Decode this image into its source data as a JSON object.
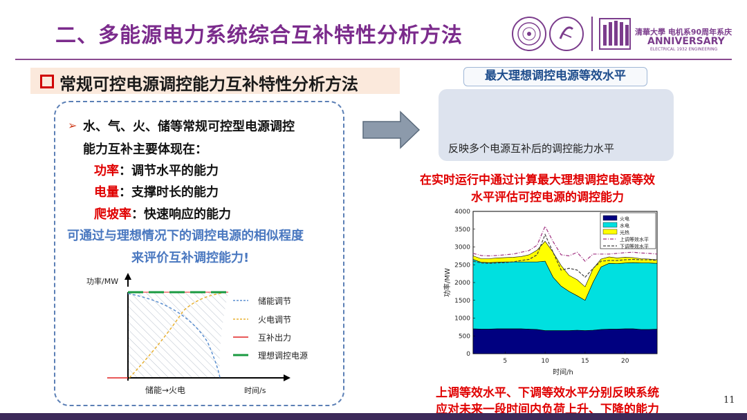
{
  "header": {
    "title": "二、多能源电力系统综合互补特性分析方法",
    "logo_caption_1": "清華大學 电机系90周年系庆",
    "logo_caption_2": "ANNIVERSARY",
    "logo_caption_3": "ELECTRICAL 1932 ENGINEERING"
  },
  "section": {
    "subtitle": "常规可控电源调控能力互补特性分析方法"
  },
  "left_panel": {
    "bullet_line1": "水、气、火、储等常规可控型电源调控",
    "bullet_line2": "能力互补主要体现在：",
    "items": [
      {
        "key": "功率",
        "desc": "：调节水平的能力"
      },
      {
        "key": "电量",
        "desc": "：支撑时长的能力"
      },
      {
        "key": "爬坡率",
        "desc": "：快速响应的能力"
      }
    ],
    "note_line1": "可通过与理想情况下的调控电源的相似程度",
    "note_line2": "来评价互补调控能力!"
  },
  "small_chart": {
    "ylabel": "功率/MW",
    "xlabel": "时间/s",
    "x_annotation": "储能→火电",
    "legend": [
      "储能调节",
      "火电调节",
      "互补出力",
      "理想调控电源"
    ],
    "colors": {
      "storage": "#5b8fd0",
      "thermal": "#e8b030",
      "complement": "#e02020",
      "ideal": "#1a9a40"
    }
  },
  "right_panel": {
    "label": "最大理想调控电源等效水平",
    "box_text": "反映多个电源互补后的调控能力水平",
    "red_note_line1": "在实时运行中通过计算最大理想调控电源等效",
    "red_note_line2": "水平评估可控电源的调控能力",
    "bottom_note_line1": "上调等效水平、下调等效水平分别反映系统",
    "bottom_note_line2": "应对未来一段时间内负荷上升、下降的能力"
  },
  "page_number": "11",
  "chart_data": {
    "type": "area",
    "xlabel": "时间/h",
    "ylabel": "功率/MW",
    "ylim": [
      0,
      4000
    ],
    "xlim": [
      1,
      24
    ],
    "x_ticks": [
      5,
      10,
      15,
      20
    ],
    "y_ticks": [
      0,
      500,
      1000,
      1500,
      2000,
      2500,
      3000,
      3500,
      4000
    ],
    "legend_placement": "top-right",
    "x": [
      1,
      2,
      3,
      4,
      5,
      6,
      7,
      8,
      9,
      10,
      11,
      12,
      13,
      14,
      15,
      16,
      17,
      18,
      19,
      20,
      21,
      22,
      23,
      24
    ],
    "series": [
      {
        "name": "火电",
        "color": "#000080",
        "values": [
          700,
          690,
          690,
          700,
          700,
          700,
          700,
          690,
          680,
          650,
          650,
          650,
          650,
          660,
          650,
          660,
          680,
          690,
          690,
          700,
          700,
          680,
          680,
          690
        ]
      },
      {
        "name": "水电",
        "color": "#00e0e0",
        "values": [
          1950,
          1880,
          1870,
          1870,
          1880,
          1880,
          1880,
          1890,
          1900,
          1950,
          1500,
          1250,
          1100,
          970,
          850,
          1350,
          1760,
          1850,
          1840,
          1850,
          1860,
          1870,
          1870,
          1850
        ]
      },
      {
        "name": "光热",
        "color": "#ffff00",
        "values": [
          100,
          100,
          110,
          120,
          120,
          130,
          150,
          200,
          330,
          560,
          700,
          580,
          450,
          450,
          380,
          380,
          220,
          180,
          160,
          160,
          140,
          120,
          110,
          100
        ]
      },
      {
        "name": "上调等效水平",
        "color": "#a03080",
        "values": [
          2820,
          2760,
          2750,
          2760,
          2780,
          2800,
          2850,
          2900,
          3050,
          3580,
          3150,
          2780,
          2750,
          2850,
          2600,
          2800,
          2800,
          2800,
          2820,
          2840,
          2850,
          2830,
          2820,
          2800
        ]
      },
      {
        "name": "下调等效水平",
        "color": "#404040",
        "values": [
          2600,
          2550,
          2540,
          2550,
          2560,
          2580,
          2620,
          2650,
          2780,
          3350,
          2850,
          2350,
          2400,
          2350,
          2150,
          2400,
          2600,
          2620,
          2620,
          2640,
          2650,
          2640,
          2640,
          2620
        ]
      }
    ]
  }
}
